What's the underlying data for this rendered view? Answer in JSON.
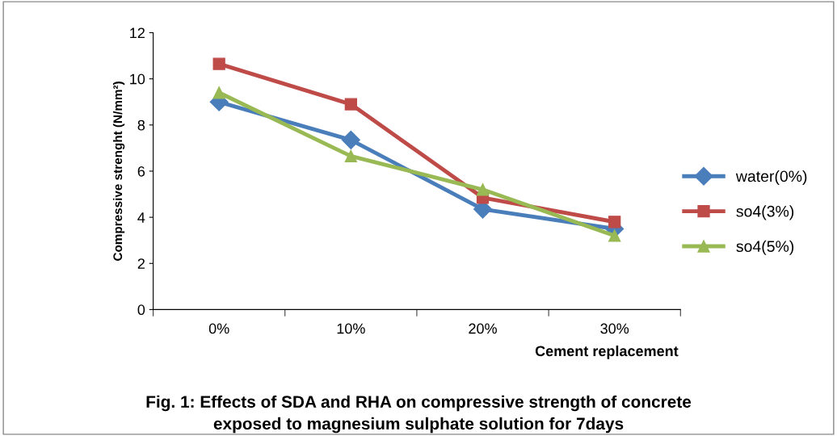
{
  "chart_data": {
    "type": "line",
    "title": "Fig. 1: Effects of SDA and RHA on compressive strength of concrete\nexposed to magnesium sulphate solution for 7days",
    "xlabel": "Cement replacement",
    "ylabel": "Compressive strenght (N/mm²)",
    "categories": [
      "0%",
      "10%",
      "20%",
      "30%"
    ],
    "series": [
      {
        "name": "water(0%)",
        "color": "#4a7ebb",
        "marker": "diamond",
        "values": [
          9.0,
          7.35,
          4.35,
          3.5
        ]
      },
      {
        "name": "so4(3%)",
        "color": "#be4b48",
        "marker": "square",
        "values": [
          10.65,
          8.9,
          4.85,
          3.8
        ]
      },
      {
        "name": "so4(5%)",
        "color": "#98b954",
        "marker": "triangle",
        "values": [
          9.4,
          6.65,
          5.2,
          3.2
        ]
      }
    ],
    "ylim": [
      0,
      12
    ],
    "yticks": [
      0,
      2,
      4,
      6,
      8,
      10,
      12
    ],
    "grid": false,
    "legend": "right",
    "line_style": "solid"
  }
}
